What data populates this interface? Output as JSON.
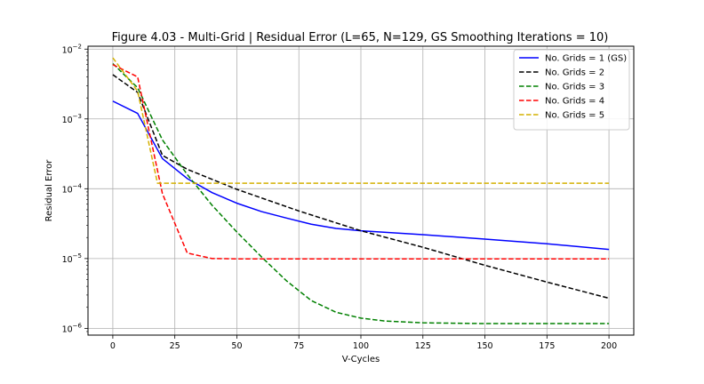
{
  "chart_data": {
    "type": "line",
    "title": "Figure 4.03 - Multi-Grid | Residual Error (L=65, N=129, GS Smoothing Iterations = 10)",
    "xlabel": "V-Cycles",
    "ylabel": "Residual Error",
    "xlim": [
      -10,
      210
    ],
    "ylim": [
      8e-07,
      0.011
    ],
    "yscale": "log",
    "grid": true,
    "legend_position": "top-right",
    "x_ticks": [
      {
        "value": 0,
        "label": "0"
      },
      {
        "value": 25,
        "label": "25"
      },
      {
        "value": 50,
        "label": "50"
      },
      {
        "value": 75,
        "label": "75"
      },
      {
        "value": 100,
        "label": "100"
      },
      {
        "value": 125,
        "label": "125"
      },
      {
        "value": 150,
        "label": "150"
      },
      {
        "value": 175,
        "label": "175"
      },
      {
        "value": 200,
        "label": "200"
      }
    ],
    "y_ticks": [
      {
        "value": 1e-06,
        "base": "10",
        "exp": "−6"
      },
      {
        "value": 1e-05,
        "base": "10",
        "exp": "−5"
      },
      {
        "value": 0.0001,
        "base": "10",
        "exp": "−4"
      },
      {
        "value": 0.001,
        "base": "10",
        "exp": "−3"
      },
      {
        "value": 0.01,
        "base": "10",
        "exp": "−2"
      }
    ],
    "series": [
      {
        "name": "No. Grids = 1 (GS)",
        "color": "#0000ff",
        "style": "solid",
        "x": [
          0,
          10,
          20,
          30,
          40,
          50,
          60,
          70,
          80,
          90,
          100,
          125,
          150,
          175,
          200
        ],
        "y": [
          0.0018,
          0.0012,
          0.00027,
          0.00014,
          8.8e-05,
          6.2e-05,
          4.7e-05,
          3.8e-05,
          3.1e-05,
          2.7e-05,
          2.5e-05,
          2.2e-05,
          1.9e-05,
          1.63e-05,
          1.35e-05
        ]
      },
      {
        "name": "No. Grids = 2",
        "color": "#000000",
        "style": "dashed",
        "x": [
          0,
          10,
          20,
          30,
          50,
          75,
          100,
          125,
          150,
          175,
          200
        ],
        "y": [
          0.0043,
          0.0024,
          0.0003,
          0.00019,
          9.8e-05,
          4.8e-05,
          2.5e-05,
          1.45e-05,
          8e-06,
          4.6e-06,
          2.7e-06
        ]
      },
      {
        "name": "No. Grids = 3",
        "color": "#008000",
        "style": "dashed",
        "x": [
          0,
          10,
          20,
          30,
          40,
          50,
          60,
          70,
          80,
          90,
          100,
          110,
          125,
          150,
          175,
          200
        ],
        "y": [
          0.0062,
          0.0028,
          0.0005,
          0.00016,
          5.8e-05,
          2.4e-05,
          1.05e-05,
          4.8e-06,
          2.5e-06,
          1.7e-06,
          1.4e-06,
          1.27e-06,
          1.2e-06,
          1.17e-06,
          1.17e-06,
          1.17e-06
        ]
      },
      {
        "name": "No. Grids = 4",
        "color": "#ff0000",
        "style": "dashed",
        "x": [
          0,
          10,
          20,
          30,
          40,
          50,
          100,
          150,
          200
        ],
        "y": [
          0.006,
          0.004,
          8.5e-05,
          1.2e-05,
          1e-05,
          9.9e-06,
          9.9e-06,
          9.9e-06,
          9.9e-06
        ]
      },
      {
        "name": "No. Grids = 5",
        "color": "#d4b000",
        "style": "dashed",
        "x": [
          0,
          10,
          18,
          20,
          50,
          100,
          150,
          200
        ],
        "y": [
          0.0075,
          0.0025,
          0.00012,
          0.00012,
          0.00012,
          0.00012,
          0.00012,
          0.00012
        ]
      }
    ]
  }
}
